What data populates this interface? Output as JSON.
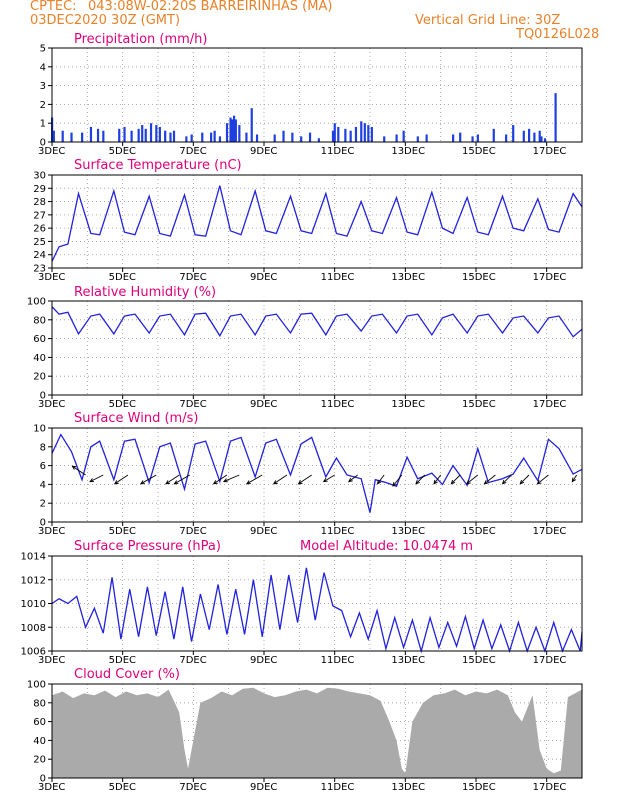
{
  "header": {
    "source": "CPTEC:",
    "location": "043:08W-02:20S  BARREIRINHAS (MA)",
    "init_time": "03DEC2020 30Z (GMT)",
    "grid_note": "Vertical Grid Line: 30Z",
    "model_id": "TQ0126L028"
  },
  "colors": {
    "header": "#e8822a",
    "title": "#e0007a",
    "line": "#2222dd",
    "bar": "#1f3fe0",
    "cloud": "#aaaaaa"
  },
  "x_ticks": [
    "3DEC",
    "5DEC",
    "7DEC",
    "9DEC",
    "11DEC",
    "13DEC",
    "15DEC",
    "17DEC"
  ],
  "chart_data": [
    {
      "type": "bar",
      "title": "Precipitation (mm/h)",
      "ylim": [
        0,
        5
      ],
      "yticks": [
        "0",
        "1",
        "2",
        "3",
        "4",
        "5"
      ],
      "x_days": [
        3.0,
        3.05,
        3.3,
        3.55,
        3.85,
        4.1,
        4.3,
        4.45,
        4.9,
        5.05,
        5.25,
        5.45,
        5.55,
        5.65,
        5.8,
        5.95,
        6.05,
        6.2,
        6.35,
        6.45,
        6.8,
        6.95,
        7.25,
        7.5,
        7.6,
        7.75,
        7.95,
        8.05,
        8.1,
        8.15,
        8.2,
        8.3,
        8.5,
        8.65,
        8.8,
        9.3,
        9.55,
        9.8,
        10.05,
        10.3,
        10.55,
        10.95,
        11.0,
        11.1,
        11.3,
        11.45,
        11.6,
        11.75,
        11.85,
        11.95,
        12.05,
        12.4,
        12.75,
        12.95,
        13.35,
        13.6,
        14.35,
        14.55,
        14.9,
        15.05,
        15.5,
        15.85,
        16.05,
        16.35,
        16.5,
        16.65,
        16.8,
        16.85,
        16.95,
        17.25
      ],
      "values": [
        1.3,
        0.6,
        0.6,
        0.5,
        0.5,
        0.8,
        0.7,
        0.6,
        0.7,
        0.8,
        0.6,
        0.7,
        0.9,
        0.7,
        1.0,
        0.9,
        0.8,
        0.6,
        0.5,
        0.6,
        0.3,
        0.4,
        0.5,
        0.5,
        0.6,
        0.3,
        1.0,
        1.3,
        1.2,
        1.4,
        1.2,
        0.9,
        0.5,
        1.8,
        0.4,
        0.4,
        0.6,
        0.5,
        0.3,
        0.5,
        0.2,
        0.6,
        1.0,
        0.8,
        0.7,
        0.6,
        0.8,
        1.1,
        1.0,
        0.9,
        0.8,
        0.3,
        0.4,
        0.6,
        0.3,
        0.4,
        0.4,
        0.5,
        0.3,
        0.4,
        0.7,
        0.4,
        0.9,
        0.6,
        0.7,
        0.5,
        0.6,
        0.3,
        0.2,
        2.6
      ]
    },
    {
      "type": "line",
      "title": "Surface Temperature (nC)",
      "ylim": [
        23,
        30
      ],
      "yticks": [
        "23",
        "24",
        "25",
        "26",
        "27",
        "28",
        "29",
        "30"
      ],
      "x_days": [
        3.0,
        3.2,
        3.45,
        3.75,
        4.1,
        4.35,
        4.75,
        5.05,
        5.35,
        5.75,
        6.05,
        6.35,
        6.75,
        7.05,
        7.35,
        7.75,
        8.05,
        8.35,
        8.75,
        9.05,
        9.35,
        9.75,
        10.05,
        10.35,
        10.75,
        11.05,
        11.35,
        11.75,
        12.05,
        12.35,
        12.75,
        13.05,
        13.35,
        13.75,
        14.05,
        14.35,
        14.75,
        15.05,
        15.35,
        15.75,
        16.05,
        16.35,
        16.75,
        17.05,
        17.35,
        17.75,
        18.0
      ],
      "values": [
        23.5,
        24.6,
        24.8,
        28.6,
        25.6,
        25.5,
        28.8,
        25.7,
        25.5,
        28.4,
        25.6,
        25.4,
        28.5,
        25.5,
        25.4,
        29.2,
        25.8,
        25.5,
        28.8,
        25.8,
        25.6,
        28.4,
        25.8,
        25.6,
        28.6,
        25.6,
        25.4,
        28.0,
        25.8,
        25.6,
        28.3,
        25.7,
        25.5,
        28.7,
        26.0,
        25.6,
        28.3,
        25.7,
        25.5,
        28.4,
        26.0,
        25.8,
        28.2,
        25.9,
        25.7,
        28.6,
        27.6
      ]
    },
    {
      "type": "line",
      "title": "Relative Humidity (%)",
      "ylim": [
        0,
        100
      ],
      "yticks": [
        "0",
        "20",
        "40",
        "60",
        "80",
        "100"
      ],
      "x_days": [
        3.0,
        3.2,
        3.45,
        3.75,
        4.1,
        4.35,
        4.75,
        5.05,
        5.35,
        5.75,
        6.05,
        6.35,
        6.75,
        7.05,
        7.35,
        7.75,
        8.05,
        8.35,
        8.75,
        9.05,
        9.35,
        9.75,
        10.05,
        10.35,
        10.75,
        11.05,
        11.35,
        11.75,
        12.05,
        12.35,
        12.75,
        13.05,
        13.35,
        13.75,
        14.05,
        14.35,
        14.75,
        15.05,
        15.35,
        15.75,
        16.05,
        16.35,
        16.75,
        17.05,
        17.35,
        17.75,
        18.0
      ],
      "values": [
        94,
        86,
        88,
        65,
        84,
        86,
        65,
        84,
        86,
        66,
        84,
        86,
        64,
        86,
        87,
        63,
        84,
        86,
        64,
        84,
        86,
        66,
        86,
        87,
        64,
        84,
        86,
        68,
        84,
        86,
        66,
        84,
        86,
        64,
        82,
        86,
        66,
        84,
        86,
        66,
        82,
        84,
        66,
        82,
        84,
        62,
        70
      ]
    },
    {
      "type": "line",
      "title": "Surface Wind (m/s)",
      "ylim": [
        0,
        10
      ],
      "yticks": [
        "0",
        "2",
        "4",
        "6",
        "8",
        "10"
      ],
      "x_days": [
        3.0,
        3.25,
        3.55,
        3.85,
        4.1,
        4.35,
        4.75,
        5.05,
        5.35,
        5.75,
        6.05,
        6.35,
        6.75,
        7.05,
        7.35,
        7.75,
        8.05,
        8.35,
        8.75,
        9.05,
        9.35,
        9.75,
        10.05,
        10.35,
        10.75,
        11.05,
        11.35,
        11.75,
        12.0,
        12.15,
        12.45,
        12.75,
        13.05,
        13.35,
        13.75,
        14.05,
        14.35,
        14.75,
        15.05,
        15.35,
        15.75,
        16.05,
        16.35,
        16.75,
        17.05,
        17.35,
        17.75,
        18.0
      ],
      "values": [
        7.3,
        9.3,
        7.5,
        4.5,
        8.0,
        8.6,
        4.5,
        8.6,
        8.8,
        4.2,
        8.0,
        8.4,
        3.5,
        8.3,
        8.6,
        4.3,
        8.6,
        9.0,
        4.8,
        8.4,
        8.8,
        5.0,
        8.3,
        9.0,
        4.8,
        6.8,
        5.0,
        4.6,
        1.0,
        4.5,
        4.2,
        3.8,
        6.9,
        4.6,
        5.2,
        4.0,
        6.0,
        3.9,
        7.8,
        4.2,
        4.6,
        5.1,
        6.8,
        4.4,
        8.8,
        7.8,
        5.1,
        5.6
      ],
      "arrows_x_days": [
        3.95,
        4.45,
        5.15,
        5.95,
        6.6,
        6.9,
        7.95,
        8.3,
        8.95,
        9.65,
        10.35,
        11.0,
        11.65,
        12.4,
        12.9,
        13.55,
        14.0,
        14.55,
        15.05,
        15.55,
        16.0,
        16.5,
        17.05,
        17.85
      ],
      "arrows_dx_dy": [
        [
          -6,
          -4
        ],
        [
          -6,
          3
        ],
        [
          -6,
          4
        ],
        [
          -7,
          4
        ],
        [
          -6,
          4
        ],
        [
          -7,
          4
        ],
        [
          -6,
          4
        ],
        [
          -7,
          3
        ],
        [
          -7,
          4
        ],
        [
          -6,
          4
        ],
        [
          -6,
          4
        ],
        [
          -5,
          3
        ],
        [
          -4,
          3
        ],
        [
          -3,
          4
        ],
        [
          -4,
          5
        ],
        [
          -4,
          4
        ],
        [
          -3,
          4
        ],
        [
          -4,
          4
        ],
        [
          -5,
          4
        ],
        [
          -5,
          4
        ],
        [
          -4,
          4
        ],
        [
          -4,
          4
        ],
        [
          -5,
          4
        ],
        [
          -2,
          3
        ]
      ]
    },
    {
      "type": "line",
      "title": "Surface Pressure (hPa)",
      "note": "Model Altitude: 10.0474 m",
      "ylim": [
        1006,
        1014
      ],
      "yticks": [
        "1006",
        "1008",
        "1010",
        "1012",
        "1014"
      ],
      "x_days": [
        3.0,
        3.2,
        3.45,
        3.7,
        3.95,
        4.2,
        4.45,
        4.7,
        4.95,
        5.2,
        5.45,
        5.7,
        5.95,
        6.2,
        6.45,
        6.7,
        6.95,
        7.2,
        7.45,
        7.7,
        7.95,
        8.2,
        8.45,
        8.7,
        8.95,
        9.2,
        9.45,
        9.7,
        9.95,
        10.2,
        10.45,
        10.7,
        10.95,
        11.2,
        11.45,
        11.7,
        11.95,
        12.2,
        12.45,
        12.7,
        12.95,
        13.2,
        13.45,
        13.7,
        13.95,
        14.2,
        14.45,
        14.7,
        14.95,
        15.2,
        15.45,
        15.7,
        15.95,
        16.2,
        16.45,
        16.7,
        16.95,
        17.2,
        17.45,
        17.7,
        17.95,
        18.0
      ],
      "values": [
        1010.0,
        1010.4,
        1010.0,
        1010.6,
        1008.0,
        1009.6,
        1007.5,
        1012.2,
        1007.0,
        1011.2,
        1007.2,
        1011.4,
        1007.3,
        1011.0,
        1007.0,
        1011.4,
        1006.8,
        1010.8,
        1007.8,
        1011.6,
        1007.4,
        1011.2,
        1007.4,
        1012.0,
        1007.2,
        1012.4,
        1007.8,
        1012.4,
        1008.4,
        1013.0,
        1008.6,
        1012.6,
        1009.8,
        1009.4,
        1007.2,
        1009.2,
        1007.0,
        1009.4,
        1006.2,
        1008.8,
        1006.3,
        1008.6,
        1006.0,
        1008.8,
        1006.3,
        1008.4,
        1006.4,
        1008.9,
        1006.2,
        1008.6,
        1006.2,
        1008.2,
        1006.0,
        1008.4,
        1006.0,
        1008.0,
        1006.0,
        1008.4,
        1006.0,
        1007.8,
        1006.0,
        1007.6
      ]
    },
    {
      "type": "area",
      "title": "Cloud Cover (%)",
      "ylim": [
        0,
        100
      ],
      "yticks": [
        "0",
        "20",
        "40",
        "60",
        "80",
        "100"
      ],
      "x_days": [
        3.0,
        3.3,
        3.6,
        3.9,
        4.2,
        4.5,
        4.8,
        5.1,
        5.4,
        5.7,
        6.0,
        6.3,
        6.6,
        6.75,
        6.85,
        7.0,
        7.2,
        7.5,
        7.8,
        8.1,
        8.4,
        8.7,
        9.0,
        9.3,
        9.6,
        9.9,
        10.2,
        10.5,
        10.8,
        11.1,
        11.4,
        11.7,
        12.0,
        12.3,
        12.55,
        12.75,
        12.9,
        13.0,
        13.2,
        13.5,
        13.8,
        14.1,
        14.4,
        14.7,
        15.0,
        15.3,
        15.6,
        15.9,
        16.1,
        16.3,
        16.6,
        16.8,
        17.0,
        17.2,
        17.4,
        17.6,
        17.8,
        18.0
      ],
      "values": [
        88,
        92,
        85,
        90,
        88,
        93,
        86,
        92,
        88,
        90,
        86,
        94,
        70,
        30,
        10,
        40,
        80,
        85,
        92,
        88,
        95,
        96,
        90,
        86,
        88,
        92,
        94,
        90,
        96,
        95,
        92,
        90,
        88,
        82,
        60,
        40,
        10,
        5,
        60,
        80,
        88,
        90,
        94,
        88,
        92,
        90,
        94,
        88,
        70,
        60,
        88,
        30,
        10,
        5,
        8,
        86,
        90,
        94
      ]
    }
  ]
}
